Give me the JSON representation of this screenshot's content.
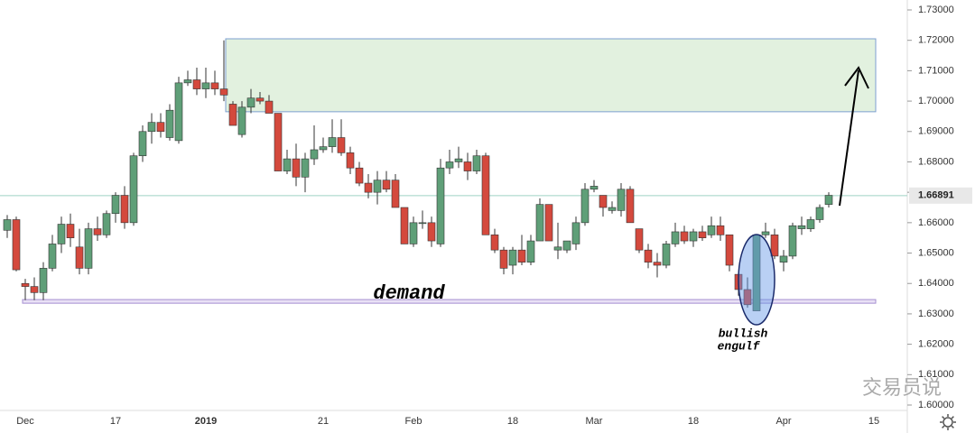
{
  "chart_data": {
    "type": "candlestick",
    "categories": [
      null,
      null,
      "Dec",
      null,
      null,
      null,
      null,
      null,
      null,
      null,
      null,
      null,
      "17",
      null,
      null,
      null,
      null,
      null,
      null,
      null,
      null,
      null,
      "2019",
      null,
      null,
      null,
      null,
      null,
      null,
      null,
      null,
      null,
      null,
      null,
      null,
      "21",
      null,
      null,
      null,
      null,
      null,
      null,
      null,
      null,
      null,
      "Feb",
      null,
      null,
      null,
      null,
      null,
      null,
      null,
      null,
      null,
      null,
      "18",
      null,
      null,
      null,
      null,
      null,
      null,
      null,
      null,
      "Mar",
      null,
      null,
      null,
      null,
      null,
      null,
      null,
      null,
      null,
      null,
      "18",
      null,
      null,
      null,
      null,
      null,
      null,
      null,
      null,
      null,
      "Apr",
      null,
      null,
      null,
      null,
      null,
      null,
      null,
      null,
      null,
      "15"
    ],
    "open": [
      1.6575,
      1.661,
      1.64,
      1.639,
      1.637,
      1.645,
      1.653,
      1.6595,
      1.652,
      1.645,
      1.658,
      1.656,
      1.663,
      1.669,
      1.66,
      1.682,
      1.69,
      1.693,
      1.688,
      1.687,
      1.706,
      1.707,
      1.704,
      1.706,
      1.704,
      1.699,
      1.689,
      1.698,
      1.701,
      1.7,
      1.696,
      1.677,
      1.681,
      1.675,
      1.681,
      1.684,
      1.685,
      1.688,
      1.683,
      1.678,
      1.673,
      1.67,
      1.674,
      1.674,
      1.665,
      1.653,
      1.66,
      1.66,
      1.653,
      1.678,
      1.68,
      1.68,
      1.677,
      1.682,
      1.656,
      1.651,
      1.646,
      1.651,
      1.647,
      1.654,
      1.666,
      1.651,
      1.651,
      1.653,
      1.66,
      1.671,
      1.669,
      1.664,
      1.664,
      1.671,
      1.658,
      1.651,
      1.647,
      1.646,
      1.653,
      1.657,
      1.654,
      1.657,
      1.656,
      1.659,
      1.656,
      1.643,
      1.638,
      1.631,
      1.656,
      1.656,
      1.647,
      1.649,
      1.658,
      1.658,
      1.661,
      1.666,
      null,
      null,
      null,
      null,
      null
    ],
    "high": [
      1.6625,
      1.662,
      1.6415,
      1.642,
      1.647,
      1.656,
      1.662,
      1.663,
      1.658,
      1.66,
      1.662,
      1.664,
      1.67,
      1.672,
      1.683,
      1.692,
      1.696,
      1.696,
      1.699,
      1.708,
      1.71,
      1.711,
      1.711,
      1.71,
      1.72,
      1.7,
      1.7,
      1.704,
      1.703,
      1.702,
      1.696,
      1.684,
      1.686,
      1.683,
      1.692,
      1.688,
      1.694,
      1.694,
      1.685,
      1.68,
      1.676,
      1.677,
      1.677,
      1.676,
      1.665,
      1.662,
      1.664,
      1.662,
      1.681,
      1.684,
      1.685,
      1.683,
      1.684,
      1.683,
      1.658,
      1.652,
      1.652,
      1.656,
      1.656,
      1.668,
      1.666,
      1.66,
      1.654,
      1.662,
      1.673,
      1.674,
      1.669,
      1.667,
      1.673,
      1.672,
      1.658,
      1.653,
      1.65,
      1.654,
      1.66,
      1.659,
      1.658,
      1.659,
      1.662,
      1.662,
      1.656,
      1.643,
      1.642,
      1.656,
      1.66,
      1.658,
      1.651,
      1.66,
      1.662,
      1.662,
      1.666,
      1.67,
      null,
      null,
      null,
      null,
      null
    ],
    "low": [
      1.655,
      1.644,
      1.6345,
      1.6345,
      1.6345,
      1.644,
      1.65,
      1.652,
      1.643,
      1.643,
      1.654,
      1.655,
      1.66,
      1.658,
      1.659,
      1.68,
      1.686,
      1.688,
      1.687,
      1.686,
      1.705,
      1.702,
      1.701,
      1.702,
      1.7,
      1.692,
      1.688,
      1.696,
      1.699,
      1.696,
      1.677,
      1.676,
      1.672,
      1.67,
      1.679,
      1.683,
      1.683,
      1.682,
      1.676,
      1.672,
      1.668,
      1.666,
      1.67,
      1.666,
      1.653,
      1.652,
      1.658,
      1.652,
      1.652,
      1.676,
      1.678,
      1.674,
      1.676,
      1.656,
      1.65,
      1.643,
      1.643,
      1.646,
      1.646,
      1.654,
      1.654,
      1.648,
      1.65,
      1.651,
      1.659,
      1.67,
      1.662,
      1.663,
      1.662,
      1.66,
      1.65,
      1.645,
      1.642,
      1.645,
      1.652,
      1.653,
      1.652,
      1.654,
      1.655,
      1.654,
      1.644,
      1.636,
      1.632,
      1.631,
      1.655,
      1.648,
      1.644,
      1.648,
      1.656,
      1.657,
      1.66,
      1.665,
      null,
      null,
      null,
      null,
      null
    ],
    "close": [
      1.661,
      1.6445,
      1.639,
      1.637,
      1.645,
      1.653,
      1.6595,
      1.655,
      1.645,
      1.658,
      1.656,
      1.663,
      1.669,
      1.66,
      1.682,
      1.69,
      1.693,
      1.69,
      1.697,
      1.706,
      1.707,
      1.704,
      1.706,
      1.704,
      1.702,
      1.692,
      1.698,
      1.701,
      1.7,
      1.696,
      1.677,
      1.681,
      1.675,
      1.681,
      1.684,
      1.685,
      1.688,
      1.683,
      1.678,
      1.673,
      1.67,
      1.674,
      1.671,
      1.665,
      1.653,
      1.66,
      1.66,
      1.654,
      1.678,
      1.68,
      1.681,
      1.677,
      1.682,
      1.656,
      1.651,
      1.645,
      1.651,
      1.647,
      1.654,
      1.666,
      1.654,
      1.652,
      1.654,
      1.66,
      1.671,
      1.672,
      1.665,
      1.665,
      1.671,
      1.66,
      1.651,
      1.647,
      1.646,
      1.653,
      1.657,
      1.654,
      1.657,
      1.655,
      1.659,
      1.656,
      1.646,
      1.638,
      1.633,
      1.656,
      1.657,
      1.649,
      1.649,
      1.659,
      1.659,
      1.661,
      1.665,
      1.669,
      null,
      null,
      null,
      null,
      null
    ],
    "up_color": "#5f9f78",
    "down_color": "#d4493d",
    "ylim": [
      1.6,
      1.73
    ],
    "yticks": [
      {
        "value": 1.6,
        "label": "1.60000"
      },
      {
        "value": 1.61,
        "label": "1.61000"
      },
      {
        "value": 1.62,
        "label": "1.62000"
      },
      {
        "value": 1.63,
        "label": "1.63000"
      },
      {
        "value": 1.64,
        "label": "1.64000"
      },
      {
        "value": 1.65,
        "label": "1.65000"
      },
      {
        "value": 1.66,
        "label": "1.66000"
      },
      {
        "value": 1.67,
        "label": "1.67000"
      },
      {
        "value": 1.68,
        "label": "1.68000"
      },
      {
        "value": 1.69,
        "label": "1.69000"
      },
      {
        "value": 1.7,
        "label": "1.70000"
      },
      {
        "value": 1.71,
        "label": "1.71000"
      },
      {
        "value": 1.72,
        "label": "1.72000"
      },
      {
        "value": 1.73,
        "label": "1.73000"
      }
    ],
    "last_price": 1.66891,
    "supply_zone": [
      1.6965,
      1.7205
    ],
    "demand_zone": [
      1.6335,
      1.6347
    ],
    "annotations": {
      "demand": "demand",
      "engulf": [
        "bullish",
        "engulf"
      ]
    },
    "watermark": "交易员说"
  }
}
